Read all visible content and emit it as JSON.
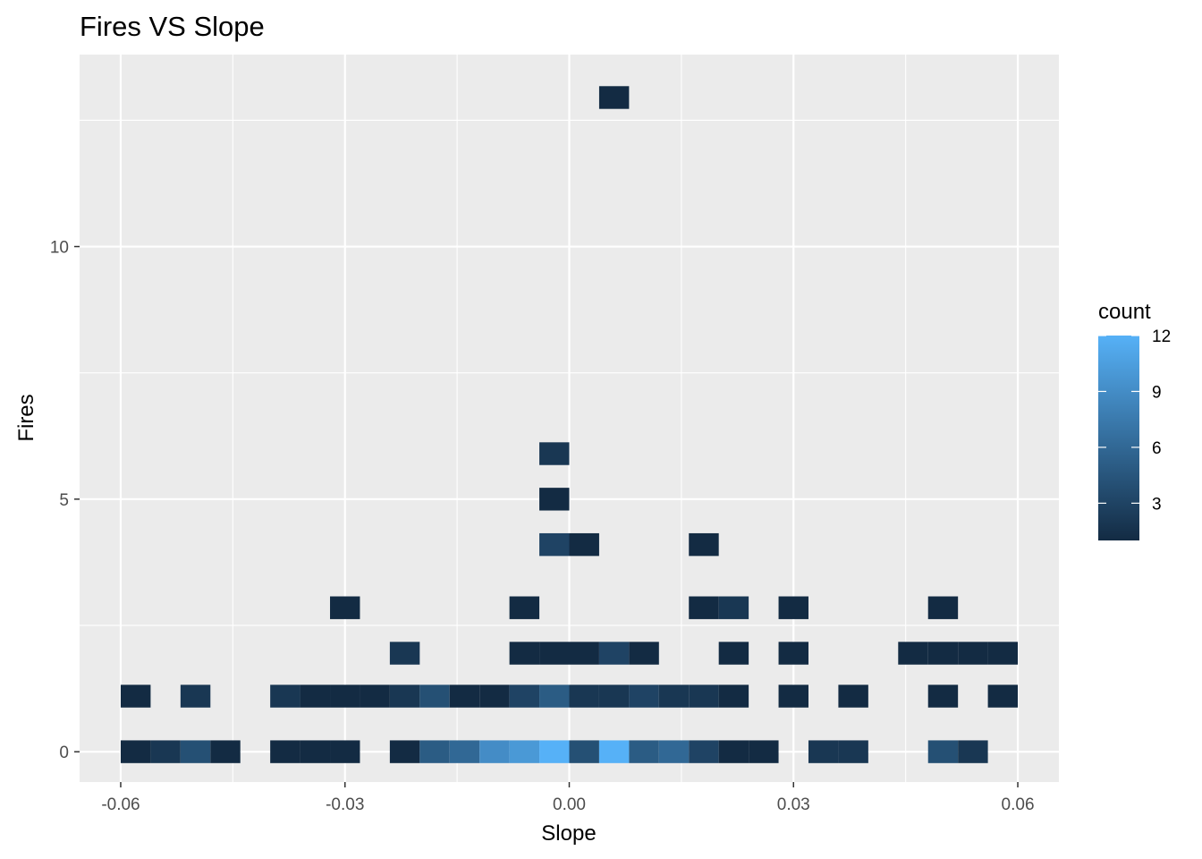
{
  "chart_data": {
    "type": "heatmap",
    "subtype": "2d-bin-count",
    "title": "Fires VS Slope",
    "xlabel": "Slope",
    "ylabel": "Fires",
    "xlim": [
      -0.0655,
      0.0655
    ],
    "ylim": [
      -0.6,
      13.8
    ],
    "x_ticks": [
      -0.06,
      -0.03,
      0.0,
      0.03,
      0.06
    ],
    "x_tick_labels": [
      "-0.06",
      "-0.03",
      "0.00",
      "0.03",
      "0.06"
    ],
    "y_ticks": [
      0,
      5,
      10
    ],
    "y_tick_labels": [
      "0",
      "5",
      "10"
    ],
    "bin_width_x": 0.004,
    "bin_height_y": 0.45,
    "grid": true,
    "background": "#ebebeb",
    "legend": {
      "title": "count",
      "position": "right",
      "range": [
        1,
        12
      ],
      "ticks": [
        3,
        6,
        9,
        12
      ],
      "tick_labels": [
        "3",
        "6",
        "9",
        "12"
      ],
      "color_low": "#132b43",
      "color_high": "#56b1f7"
    },
    "bins": [
      {
        "x": -0.058,
        "y": 0,
        "count": 1
      },
      {
        "x": -0.054,
        "y": 0,
        "count": 2
      },
      {
        "x": -0.05,
        "y": 0,
        "count": 4
      },
      {
        "x": -0.046,
        "y": 0,
        "count": 1
      },
      {
        "x": -0.038,
        "y": 0,
        "count": 1
      },
      {
        "x": -0.034,
        "y": 0,
        "count": 1
      },
      {
        "x": -0.03,
        "y": 0,
        "count": 1
      },
      {
        "x": -0.022,
        "y": 0,
        "count": 1
      },
      {
        "x": -0.018,
        "y": 0,
        "count": 5
      },
      {
        "x": -0.014,
        "y": 0,
        "count": 6
      },
      {
        "x": -0.01,
        "y": 0,
        "count": 9
      },
      {
        "x": -0.006,
        "y": 0,
        "count": 10
      },
      {
        "x": -0.002,
        "y": 0,
        "count": 12
      },
      {
        "x": 0.002,
        "y": 0,
        "count": 4
      },
      {
        "x": 0.006,
        "y": 0,
        "count": 12
      },
      {
        "x": 0.01,
        "y": 0,
        "count": 5
      },
      {
        "x": 0.014,
        "y": 0,
        "count": 6
      },
      {
        "x": 0.018,
        "y": 0,
        "count": 3
      },
      {
        "x": 0.022,
        "y": 0,
        "count": 1
      },
      {
        "x": 0.026,
        "y": 0,
        "count": 1
      },
      {
        "x": 0.034,
        "y": 0,
        "count": 2
      },
      {
        "x": 0.038,
        "y": 0,
        "count": 2
      },
      {
        "x": 0.05,
        "y": 0,
        "count": 4
      },
      {
        "x": 0.054,
        "y": 0,
        "count": 2
      },
      {
        "x": -0.058,
        "y": 1.1,
        "count": 1
      },
      {
        "x": -0.05,
        "y": 1.1,
        "count": 2
      },
      {
        "x": -0.038,
        "y": 1.1,
        "count": 2
      },
      {
        "x": -0.034,
        "y": 1.1,
        "count": 1
      },
      {
        "x": -0.03,
        "y": 1.1,
        "count": 1
      },
      {
        "x": -0.026,
        "y": 1.1,
        "count": 1
      },
      {
        "x": -0.022,
        "y": 1.1,
        "count": 2
      },
      {
        "x": -0.018,
        "y": 1.1,
        "count": 4
      },
      {
        "x": -0.014,
        "y": 1.1,
        "count": 1
      },
      {
        "x": -0.01,
        "y": 1.1,
        "count": 1
      },
      {
        "x": -0.006,
        "y": 1.1,
        "count": 3
      },
      {
        "x": -0.002,
        "y": 1.1,
        "count": 5
      },
      {
        "x": 0.002,
        "y": 1.1,
        "count": 2
      },
      {
        "x": 0.006,
        "y": 1.1,
        "count": 2
      },
      {
        "x": 0.01,
        "y": 1.1,
        "count": 3
      },
      {
        "x": 0.014,
        "y": 1.1,
        "count": 2
      },
      {
        "x": 0.018,
        "y": 1.1,
        "count": 2
      },
      {
        "x": 0.022,
        "y": 1.1,
        "count": 1
      },
      {
        "x": 0.03,
        "y": 1.1,
        "count": 1
      },
      {
        "x": 0.038,
        "y": 1.1,
        "count": 1
      },
      {
        "x": 0.05,
        "y": 1.1,
        "count": 1
      },
      {
        "x": 0.058,
        "y": 1.1,
        "count": 1
      },
      {
        "x": -0.022,
        "y": 1.95,
        "count": 2
      },
      {
        "x": -0.006,
        "y": 1.95,
        "count": 1
      },
      {
        "x": -0.002,
        "y": 1.95,
        "count": 1
      },
      {
        "x": 0.002,
        "y": 1.95,
        "count": 1
      },
      {
        "x": 0.006,
        "y": 1.95,
        "count": 3
      },
      {
        "x": 0.01,
        "y": 1.95,
        "count": 1
      },
      {
        "x": 0.022,
        "y": 1.95,
        "count": 1
      },
      {
        "x": 0.03,
        "y": 1.95,
        "count": 1
      },
      {
        "x": 0.046,
        "y": 1.95,
        "count": 1
      },
      {
        "x": 0.05,
        "y": 1.95,
        "count": 1
      },
      {
        "x": 0.054,
        "y": 1.95,
        "count": 1
      },
      {
        "x": 0.058,
        "y": 1.95,
        "count": 1
      },
      {
        "x": -0.03,
        "y": 2.85,
        "count": 1
      },
      {
        "x": -0.006,
        "y": 2.85,
        "count": 1
      },
      {
        "x": 0.018,
        "y": 2.85,
        "count": 1
      },
      {
        "x": 0.022,
        "y": 2.85,
        "count": 2
      },
      {
        "x": 0.03,
        "y": 2.85,
        "count": 1
      },
      {
        "x": 0.05,
        "y": 2.85,
        "count": 1
      },
      {
        "x": -0.002,
        "y": 4.1,
        "count": 3
      },
      {
        "x": 0.002,
        "y": 4.1,
        "count": 1
      },
      {
        "x": 0.018,
        "y": 4.1,
        "count": 1
      },
      {
        "x": -0.002,
        "y": 5.0,
        "count": 1
      },
      {
        "x": -0.002,
        "y": 5.9,
        "count": 2
      },
      {
        "x": 0.006,
        "y": 12.95,
        "count": 1
      }
    ]
  }
}
